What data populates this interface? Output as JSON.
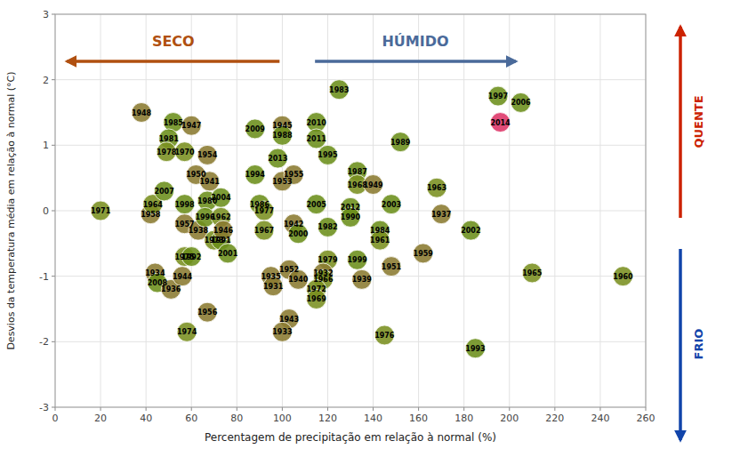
{
  "chart_data": {
    "type": "scatter",
    "x_label": "Percentagem de precipitação em relação à normal (%)",
    "y_label": "Desvios da temperatura média em relação à normal  (°C)",
    "labels": [
      "1971",
      "1948",
      "1958",
      "1964",
      "1934",
      "2008",
      "1985",
      "1981",
      "1978",
      "2007",
      "1936",
      "1944",
      "1974",
      "1947",
      "1970",
      "1998",
      "1957",
      "1975",
      "1992",
      "1950",
      "1938",
      "1954",
      "1941",
      "1980",
      "1996",
      "1956",
      "2004",
      "1973",
      "1991",
      "1962",
      "1946",
      "2001",
      "2009",
      "1994",
      "1986",
      "1977",
      "1967",
      "1935",
      "1931",
      "1945",
      "1988",
      "2013",
      "1953",
      "1955",
      "1942",
      "2000",
      "1952",
      "1940",
      "1943",
      "1933",
      "2010",
      "2011",
      "1995",
      "2005",
      "1982",
      "1979",
      "1932",
      "1966",
      "1972",
      "1969",
      "1983",
      "2012",
      "1990",
      "1987",
      "1968",
      "1949",
      "1999",
      "1939",
      "1976",
      "2003",
      "1984",
      "1961",
      "1951",
      "1989",
      "1963",
      "1959",
      "2002",
      "1937",
      "1993",
      "1997",
      "2014",
      "2006",
      "1965",
      "1960"
    ],
    "x": [
      20,
      38,
      42,
      43,
      44,
      45,
      52,
      50,
      49,
      48,
      51,
      56,
      58,
      60,
      57,
      57,
      57,
      57,
      60,
      62,
      63,
      67,
      68,
      67,
      66,
      67,
      73,
      70,
      73,
      73,
      74,
      76,
      88,
      88,
      90,
      92,
      92,
      95,
      96,
      100,
      100,
      98,
      100,
      105,
      105,
      107,
      103,
      107,
      103,
      100,
      115,
      115,
      120,
      115,
      120,
      120,
      118,
      118,
      115,
      115,
      125,
      130,
      130,
      133,
      133,
      140,
      133,
      135,
      145,
      148,
      143,
      143,
      148,
      152,
      168,
      162,
      183,
      170,
      185,
      195,
      196,
      205,
      210,
      250
    ],
    "values": [
      0.0,
      1.5,
      -0.05,
      0.1,
      -0.95,
      -1.1,
      1.35,
      1.1,
      0.9,
      0.3,
      -1.2,
      -1.0,
      -1.85,
      1.3,
      0.9,
      0.1,
      -0.2,
      -0.7,
      -0.7,
      0.55,
      -0.3,
      0.85,
      0.45,
      0.15,
      -0.1,
      -1.55,
      0.2,
      -0.45,
      -0.45,
      -0.1,
      -0.3,
      -0.65,
      1.25,
      0.55,
      0.1,
      0.0,
      -0.3,
      -1.0,
      -1.15,
      1.3,
      1.15,
      0.8,
      0.45,
      0.55,
      -0.2,
      -0.35,
      -0.9,
      -1.05,
      -1.65,
      -1.85,
      1.35,
      1.1,
      0.85,
      0.1,
      -0.25,
      -0.75,
      -0.95,
      -1.05,
      -1.2,
      -1.35,
      1.85,
      0.05,
      -0.1,
      0.6,
      0.4,
      0.4,
      -0.75,
      -1.05,
      -1.9,
      0.1,
      -0.3,
      -0.45,
      -0.85,
      1.05,
      0.35,
      -0.65,
      -0.3,
      -0.05,
      -2.1,
      1.75,
      1.35,
      1.65,
      -0.95,
      -1.0
    ],
    "colors": [
      "#7a9020",
      "#8a7a30",
      "#8a7a30",
      "#7a9020",
      "#8a7a30",
      "#6b8e1a",
      "#6b8e1a",
      "#6b8e1a",
      "#7a9020",
      "#6b8e1a",
      "#8a7a30",
      "#8a7a30",
      "#7a9020",
      "#8a7a30",
      "#7a9020",
      "#6b8e1a",
      "#8a7a30",
      "#7a9020",
      "#6b8e1a",
      "#8a7a30",
      "#8a7a30",
      "#8a7a30",
      "#8a7a30",
      "#6b8e1a",
      "#6b8e1a",
      "#8a7a30",
      "#6b8e1a",
      "#7a9020",
      "#6b8e1a",
      "#7a9020",
      "#8a7a30",
      "#6b8e1a",
      "#6b8e1a",
      "#6b8e1a",
      "#6b8e1a",
      "#7a9020",
      "#7a9020",
      "#8a7a30",
      "#8a7a30",
      "#8a7a30",
      "#6b8e1a",
      "#6b8e1a",
      "#8a7a30",
      "#8a7a30",
      "#8a7a30",
      "#6b8e1a",
      "#8a7a30",
      "#8a7a30",
      "#8a7a30",
      "#8a7a30",
      "#6b8e1a",
      "#6b8e1a",
      "#6b8e1a",
      "#6b8e1a",
      "#6b8e1a",
      "#7a9020",
      "#8a7a30",
      "#7a9020",
      "#7a9020",
      "#7a9020",
      "#6b8e1a",
      "#6b8e1a",
      "#6b8e1a",
      "#6b8e1a",
      "#7a9020",
      "#8a7a30",
      "#6b8e1a",
      "#8a7a30",
      "#7a9020",
      "#6b8e1a",
      "#6b8e1a",
      "#7a9020",
      "#8a7a30",
      "#6b8e1a",
      "#7a9020",
      "#8a7a30",
      "#6b8e1a",
      "#8a7a30",
      "#6b8e1a",
      "#6b8e1a",
      "#dd3366",
      "#6b8e1a",
      "#7a9020",
      "#7a9020"
    ],
    "xlim": [
      0,
      260
    ],
    "ylim": [
      -3.0,
      3.0
    ],
    "xticks": [
      0,
      20,
      40,
      60,
      80,
      100,
      120,
      140,
      160,
      180,
      200,
      220,
      240,
      260
    ],
    "yticks": [
      -3.0,
      -2.0,
      -1.0,
      0.0,
      1.0,
      2.0,
      3.0
    ],
    "grid": true,
    "annotations": [
      {
        "text": "SECO",
        "color": "#b05010"
      },
      {
        "text": "HÚMIDO",
        "color": "#4a6a9a"
      },
      {
        "text": "QUENTE",
        "color": "#cc2200"
      },
      {
        "text": "FRIO",
        "color": "#1144aa"
      }
    ]
  }
}
